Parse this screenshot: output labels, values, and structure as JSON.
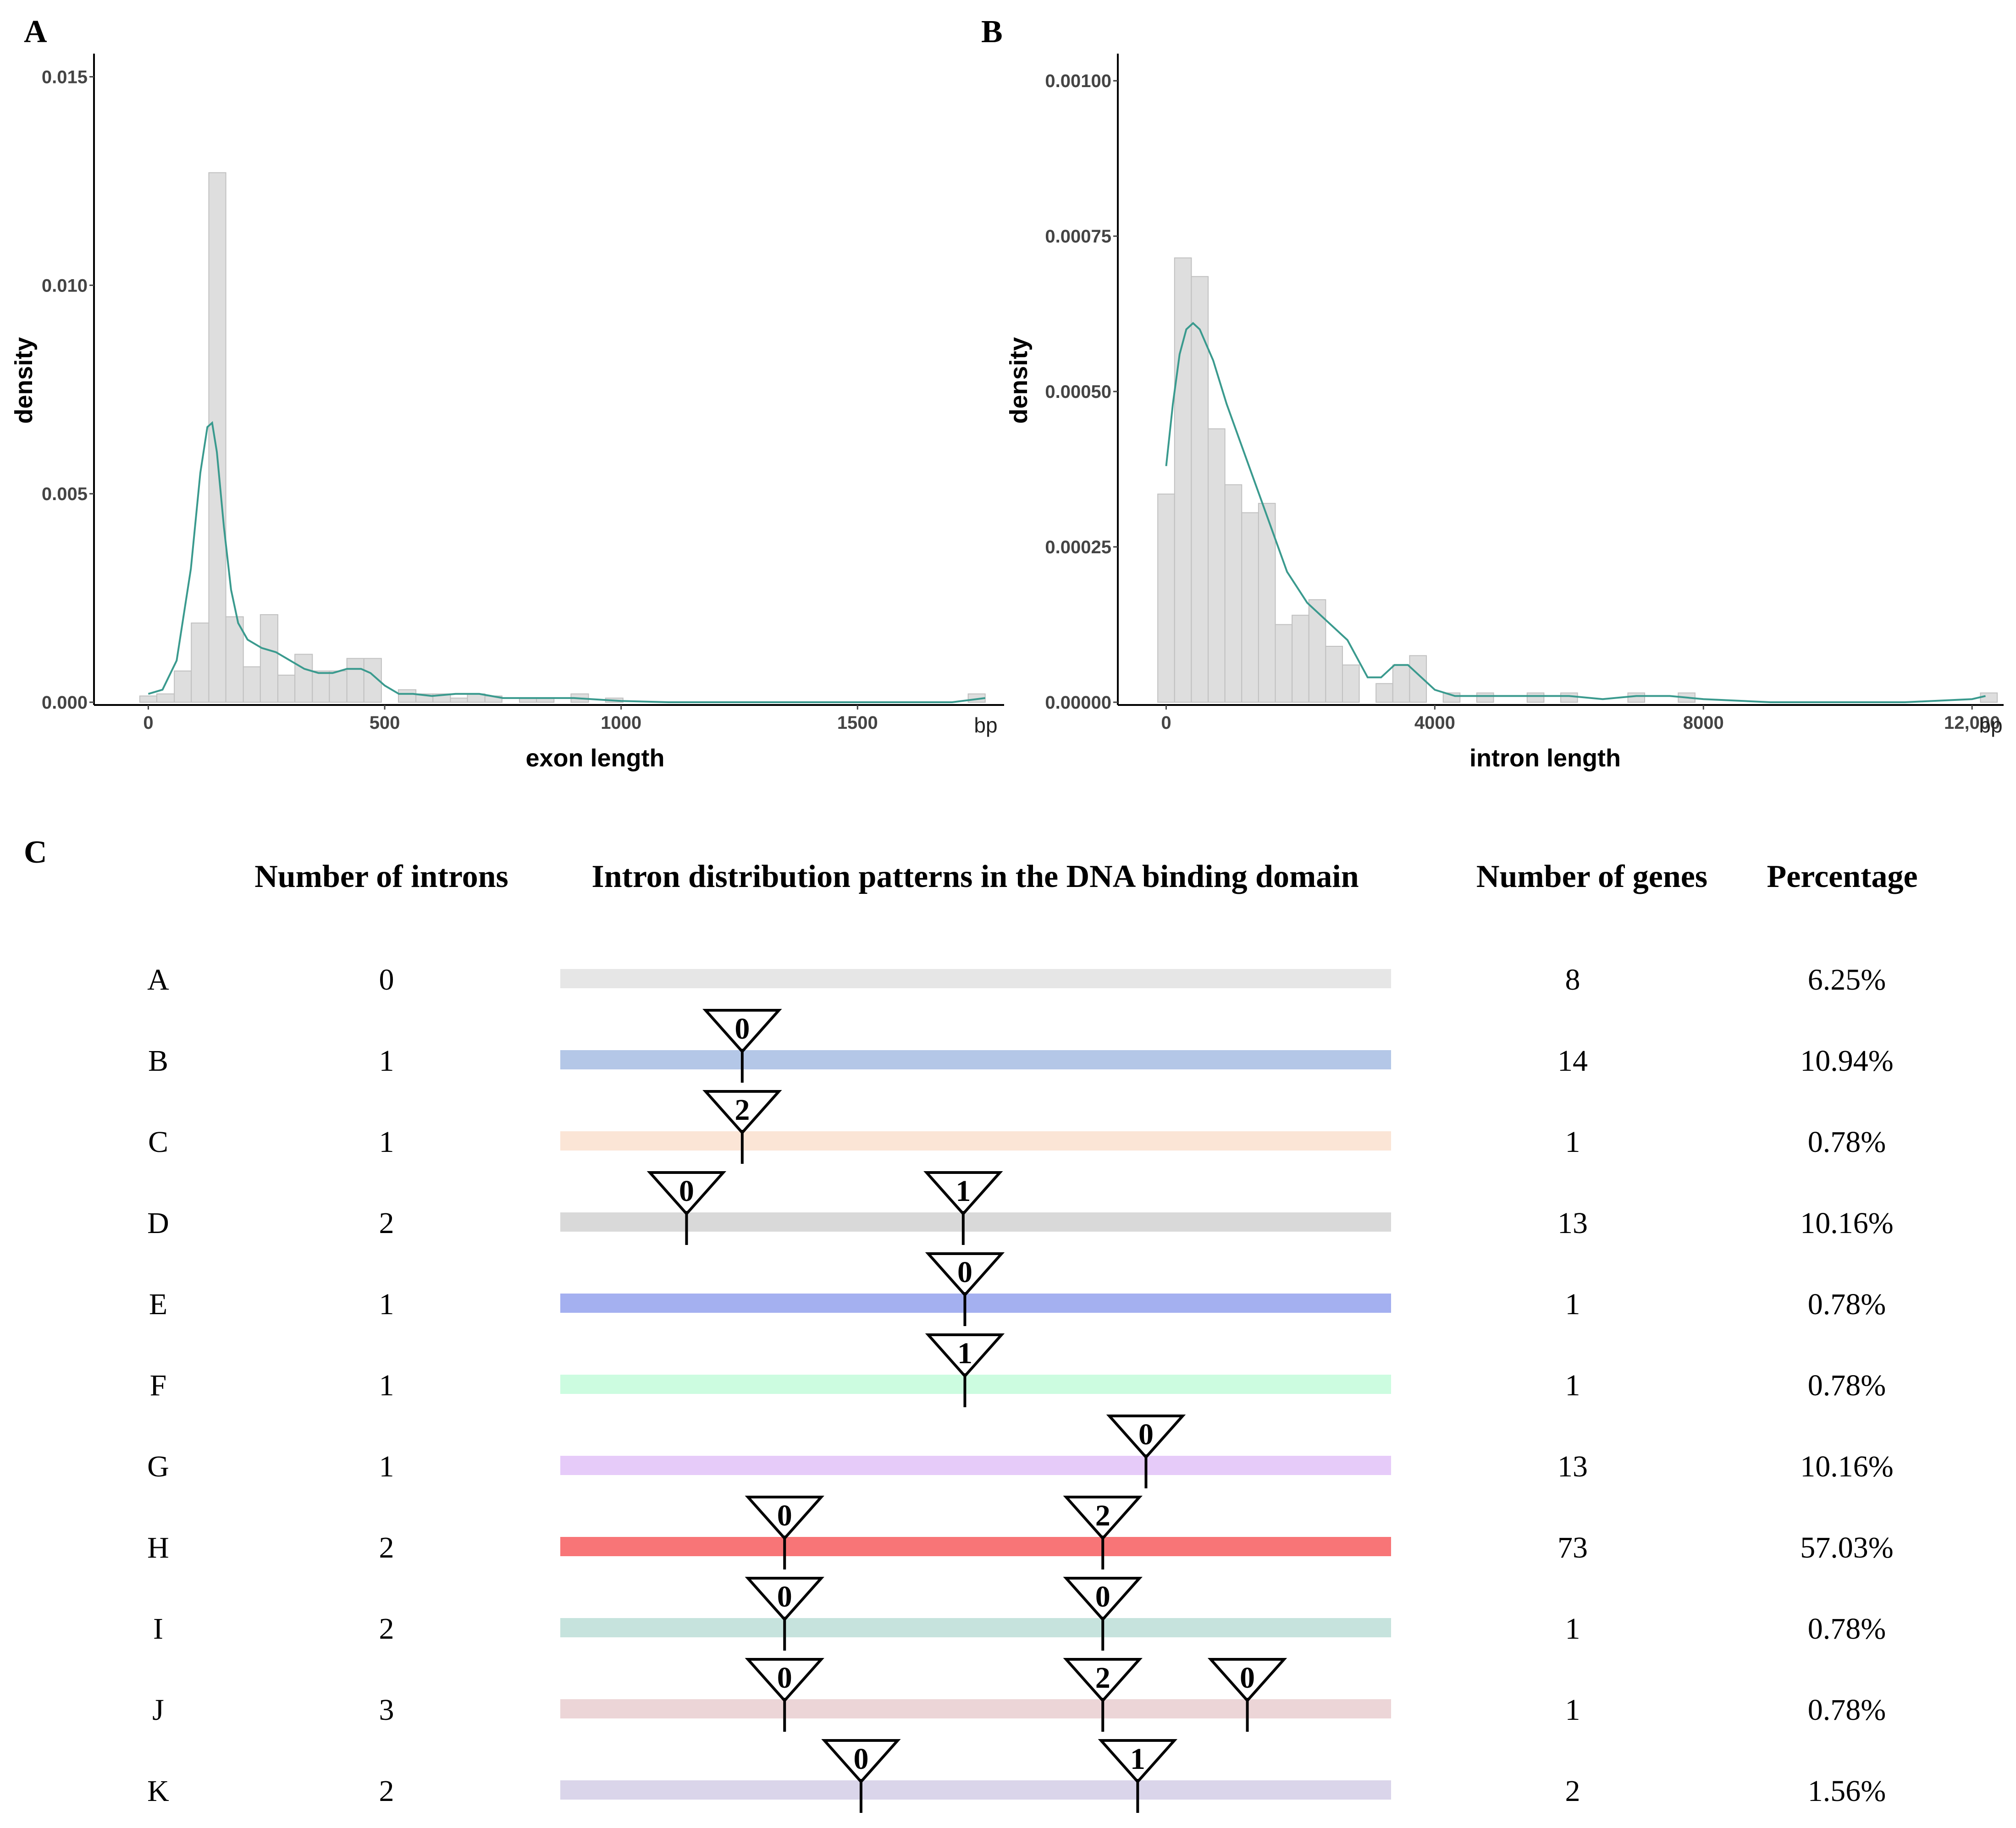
{
  "chart_data": [
    {
      "panel": "A",
      "type": "histogram",
      "xlabel": "exon length",
      "ylabel": "density",
      "x_unit": "bp",
      "xlim": [
        -110,
        1810
      ],
      "ylim": [
        0,
        0.0155
      ],
      "x_ticks": [
        0,
        500,
        1000,
        1500
      ],
      "x_tick_labels": [
        "0",
        "500",
        "1000",
        "1500"
      ],
      "y_ticks": [
        0,
        0.005,
        0.01,
        0.015
      ],
      "y_tick_labels": [
        "0.000",
        "0.005",
        "0.010",
        "0.015"
      ],
      "grid": false,
      "bin_width": 36.5,
      "bins": [
        {
          "x0": -18,
          "x1": 18,
          "density": 0.00015
        },
        {
          "x0": 18,
          "x1": 55,
          "density": 0.0002
        },
        {
          "x0": 55,
          "x1": 91,
          "density": 0.00075
        },
        {
          "x0": 91,
          "x1": 128,
          "density": 0.0019
        },
        {
          "x0": 128,
          "x1": 164,
          "density": 0.0127
        },
        {
          "x0": 164,
          "x1": 201,
          "density": 0.00205
        },
        {
          "x0": 201,
          "x1": 237,
          "density": 0.00085
        },
        {
          "x0": 237,
          "x1": 274,
          "density": 0.0021
        },
        {
          "x0": 274,
          "x1": 310,
          "density": 0.00065
        },
        {
          "x0": 310,
          "x1": 347,
          "density": 0.00115
        },
        {
          "x0": 347,
          "x1": 383,
          "density": 0.00075
        },
        {
          "x0": 383,
          "x1": 420,
          "density": 0.00075
        },
        {
          "x0": 420,
          "x1": 456,
          "density": 0.00105
        },
        {
          "x0": 456,
          "x1": 493,
          "density": 0.00105
        },
        {
          "x0": 493,
          "x1": 529,
          "density": 0.0
        },
        {
          "x0": 529,
          "x1": 566,
          "density": 0.0003
        },
        {
          "x0": 566,
          "x1": 602,
          "density": 0.0002
        },
        {
          "x0": 602,
          "x1": 639,
          "density": 0.0002
        },
        {
          "x0": 639,
          "x1": 675,
          "density": 0.0001
        },
        {
          "x0": 675,
          "x1": 712,
          "density": 0.0002
        },
        {
          "x0": 712,
          "x1": 748,
          "density": 0.00015
        },
        {
          "x0": 748,
          "x1": 785,
          "density": 0.0
        },
        {
          "x0": 785,
          "x1": 821,
          "density": 0.0001
        },
        {
          "x0": 821,
          "x1": 858,
          "density": 0.0001
        },
        {
          "x0": 858,
          "x1": 894,
          "density": 0.0
        },
        {
          "x0": 894,
          "x1": 931,
          "density": 0.0002
        },
        {
          "x0": 931,
          "x1": 967,
          "density": 0.0
        },
        {
          "x0": 967,
          "x1": 1004,
          "density": 0.0001
        },
        {
          "x0": 1734,
          "x1": 1770,
          "density": 0.0002
        }
      ],
      "density_curve": {
        "x": [
          0,
          30,
          60,
          90,
          110,
          125,
          135,
          145,
          160,
          175,
          190,
          210,
          240,
          270,
          300,
          330,
          360,
          390,
          420,
          450,
          470,
          500,
          530,
          560,
          600,
          650,
          700,
          750,
          800,
          900,
          1000,
          1100,
          1300,
          1500,
          1700,
          1770
        ],
        "y": [
          0.0002,
          0.0003,
          0.001,
          0.0032,
          0.0055,
          0.0066,
          0.0067,
          0.006,
          0.0042,
          0.0027,
          0.0019,
          0.0015,
          0.0013,
          0.0012,
          0.001,
          0.0008,
          0.0007,
          0.0007,
          0.0008,
          0.0008,
          0.0007,
          0.0004,
          0.0002,
          0.0002,
          0.00015,
          0.0002,
          0.0002,
          0.0001,
          0.0001,
          0.0001,
          3e-05,
          0.0,
          0.0,
          0.0,
          0.0,
          0.0001
        ],
        "color": "#3a9a8e"
      },
      "bar_fill": "#dedede",
      "bar_stroke": "#c0c0c0"
    },
    {
      "panel": "B",
      "type": "histogram",
      "xlabel": "intron length",
      "ylabel": "density",
      "x_unit": "bp",
      "xlim": [
        -720,
        12470
      ],
      "ylim": [
        0,
        0.00104
      ],
      "x_ticks": [
        0,
        4000,
        8000,
        12000
      ],
      "x_tick_labels": [
        "0",
        "4000",
        "8000",
        "12,000"
      ],
      "y_ticks": [
        0,
        0.00025,
        0.0005,
        0.00075,
        0.001
      ],
      "y_tick_labels": [
        "0.00000",
        "0.00025",
        "0.00050",
        "0.00075",
        "0.00100"
      ],
      "grid": false,
      "bin_width": 250,
      "bins": [
        {
          "x0": -125,
          "x1": 125,
          "density": 0.000335
        },
        {
          "x0": 125,
          "x1": 375,
          "density": 0.000715
        },
        {
          "x0": 375,
          "x1": 625,
          "density": 0.000685
        },
        {
          "x0": 625,
          "x1": 875,
          "density": 0.00044
        },
        {
          "x0": 875,
          "x1": 1125,
          "density": 0.00035
        },
        {
          "x0": 1125,
          "x1": 1375,
          "density": 0.000305
        },
        {
          "x0": 1375,
          "x1": 1625,
          "density": 0.00032
        },
        {
          "x0": 1625,
          "x1": 1875,
          "density": 0.000125
        },
        {
          "x0": 1875,
          "x1": 2125,
          "density": 0.00014
        },
        {
          "x0": 2125,
          "x1": 2375,
          "density": 0.000165
        },
        {
          "x0": 2375,
          "x1": 2625,
          "density": 9e-05
        },
        {
          "x0": 2625,
          "x1": 2875,
          "density": 6e-05
        },
        {
          "x0": 2875,
          "x1": 3125,
          "density": 0.0
        },
        {
          "x0": 3125,
          "x1": 3375,
          "density": 3e-05
        },
        {
          "x0": 3375,
          "x1": 3625,
          "density": 6e-05
        },
        {
          "x0": 3625,
          "x1": 3875,
          "density": 7.5e-05
        },
        {
          "x0": 3875,
          "x1": 4125,
          "density": 0.0
        },
        {
          "x0": 4125,
          "x1": 4375,
          "density": 1.5e-05
        },
        {
          "x0": 4375,
          "x1": 4625,
          "density": 0.0
        },
        {
          "x0": 4625,
          "x1": 4875,
          "density": 1.5e-05
        },
        {
          "x0": 5375,
          "x1": 5625,
          "density": 1.5e-05
        },
        {
          "x0": 5875,
          "x1": 6125,
          "density": 1.5e-05
        },
        {
          "x0": 6875,
          "x1": 7125,
          "density": 1.5e-05
        },
        {
          "x0": 7625,
          "x1": 7875,
          "density": 1.5e-05
        },
        {
          "x0": 12125,
          "x1": 12375,
          "density": 1.5e-05
        }
      ],
      "density_curve": {
        "x": [
          0,
          100,
          200,
          300,
          400,
          500,
          700,
          900,
          1200,
          1500,
          1800,
          2100,
          2400,
          2700,
          3000,
          3200,
          3400,
          3600,
          3800,
          4000,
          4300,
          4700,
          5000,
          5500,
          6000,
          6500,
          7000,
          7500,
          8000,
          9000,
          10000,
          11000,
          12000,
          12200
        ],
        "y": [
          0.00038,
          0.00048,
          0.00056,
          0.0006,
          0.00061,
          0.0006,
          0.00055,
          0.00048,
          0.00039,
          0.0003,
          0.00021,
          0.00016,
          0.00013,
          0.0001,
          4e-05,
          4e-05,
          6e-05,
          6e-05,
          4e-05,
          2e-05,
          1e-05,
          1e-05,
          1e-05,
          1e-05,
          1e-05,
          5e-06,
          1e-05,
          1e-05,
          5e-06,
          0.0,
          0.0,
          0.0,
          5e-06,
          1e-05
        ],
        "color": "#3a9a8e"
      },
      "bar_fill": "#dedede",
      "bar_stroke": "#c0c0c0"
    },
    {
      "panel": "C",
      "type": "table",
      "columns": [
        "Number of introns",
        "Intron distribution patterns in the DNA binding domain",
        "Number of genes",
        "Percentage"
      ],
      "rows": [
        {
          "label": "A",
          "introns": "0",
          "genes": "8",
          "percentage": "6.25%",
          "bar_color": "#e6e6e6",
          "insertions": []
        },
        {
          "label": "B",
          "introns": "1",
          "genes": "14",
          "percentage": "10.94%",
          "bar_color": "#b4c7e7",
          "insertions": [
            {
              "position": 0.219,
              "phase": "0"
            }
          ]
        },
        {
          "label": "C",
          "introns": "1",
          "genes": "1",
          "percentage": "0.78%",
          "bar_color": "#fbe5d6",
          "insertions": [
            {
              "position": 0.219,
              "phase": "2"
            }
          ]
        },
        {
          "label": "D",
          "introns": "2",
          "genes": "13",
          "percentage": "10.16%",
          "bar_color": "#d9d9d9",
          "insertions": [
            {
              "position": 0.152,
              "phase": "0"
            },
            {
              "position": 0.485,
              "phase": "1"
            }
          ]
        },
        {
          "label": "E",
          "introns": "1",
          "genes": "1",
          "percentage": "0.78%",
          "bar_color": "#a4b0f0",
          "insertions": [
            {
              "position": 0.487,
              "phase": "0"
            }
          ]
        },
        {
          "label": "F",
          "introns": "1",
          "genes": "1",
          "percentage": "0.78%",
          "bar_color": "#ccfce0",
          "insertions": [
            {
              "position": 0.487,
              "phase": "1"
            }
          ]
        },
        {
          "label": "G",
          "introns": "1",
          "genes": "13",
          "percentage": "10.16%",
          "bar_color": "#e6cbf9",
          "insertions": [
            {
              "position": 0.705,
              "phase": "0"
            }
          ]
        },
        {
          "label": "H",
          "introns": "2",
          "genes": "73",
          "percentage": "57.03%",
          "bar_color": "#f87577",
          "insertions": [
            {
              "position": 0.27,
              "phase": "0"
            },
            {
              "position": 0.653,
              "phase": "2"
            }
          ]
        },
        {
          "label": "I",
          "introns": "2",
          "genes": "1",
          "percentage": "0.78%",
          "bar_color": "#c6e3dd",
          "insertions": [
            {
              "position": 0.27,
              "phase": "0"
            },
            {
              "position": 0.653,
              "phase": "0"
            }
          ]
        },
        {
          "label": "J",
          "introns": "3",
          "genes": "1",
          "percentage": "0.78%",
          "bar_color": "#ecd5d7",
          "insertions": [
            {
              "position": 0.27,
              "phase": "0"
            },
            {
              "position": 0.653,
              "phase": "2"
            },
            {
              "position": 0.827,
              "phase": "0"
            }
          ]
        },
        {
          "label": "K",
          "introns": "2",
          "genes": "2",
          "percentage": "1.56%",
          "bar_color": "#dad5ea",
          "insertions": [
            {
              "position": 0.362,
              "phase": "0"
            },
            {
              "position": 0.695,
              "phase": "1"
            }
          ]
        }
      ]
    }
  ]
}
